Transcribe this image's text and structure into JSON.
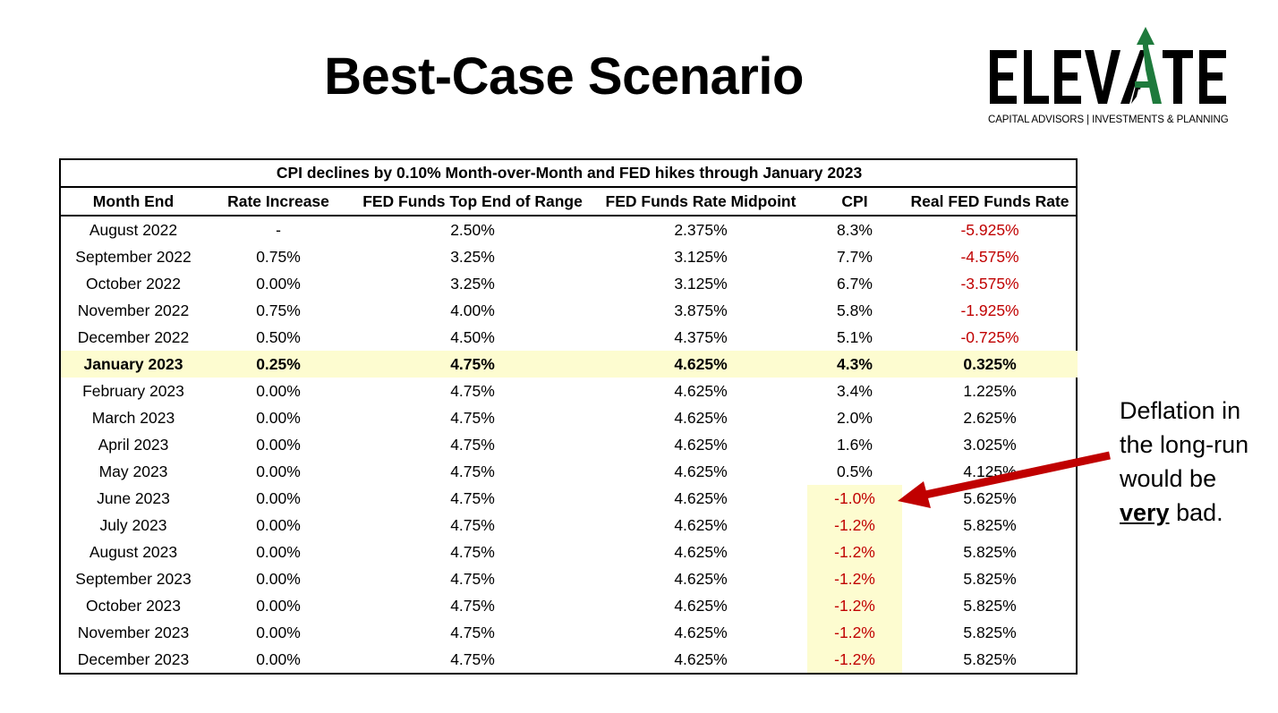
{
  "title": "Best-Case Scenario",
  "logo": {
    "wordmark": "ELEVATE",
    "tagline": "CAPITAL ADVISORS | INVESTMENTS & PLANNING",
    "colors": {
      "text": "#000000",
      "arrow": "#1e7a3c"
    }
  },
  "table": {
    "caption": "CPI declines by 0.10% Month-over-Month and FED hikes through January 2023",
    "columns": [
      "Month End",
      "Rate Increase",
      "FED Funds Top End of Range",
      "FED Funds Rate Midpoint",
      "CPI",
      "Real FED Funds Rate"
    ],
    "rows": [
      {
        "month": "August 2022",
        "rate_increase": "-",
        "top_end": "2.50%",
        "midpoint": "2.375%",
        "cpi": "8.3%",
        "real_rate": "-5.925%"
      },
      {
        "month": "September 2022",
        "rate_increase": "0.75%",
        "top_end": "3.25%",
        "midpoint": "3.125%",
        "cpi": "7.7%",
        "real_rate": "-4.575%"
      },
      {
        "month": "October 2022",
        "rate_increase": "0.00%",
        "top_end": "3.25%",
        "midpoint": "3.125%",
        "cpi": "6.7%",
        "real_rate": "-3.575%"
      },
      {
        "month": "November 2022",
        "rate_increase": "0.75%",
        "top_end": "4.00%",
        "midpoint": "3.875%",
        "cpi": "5.8%",
        "real_rate": "-1.925%"
      },
      {
        "month": "December 2022",
        "rate_increase": "0.50%",
        "top_end": "4.50%",
        "midpoint": "4.375%",
        "cpi": "5.1%",
        "real_rate": "-0.725%"
      },
      {
        "month": "January 2023",
        "rate_increase": "0.25%",
        "top_end": "4.75%",
        "midpoint": "4.625%",
        "cpi": "4.3%",
        "real_rate": "0.325%"
      },
      {
        "month": "February 2023",
        "rate_increase": "0.00%",
        "top_end": "4.75%",
        "midpoint": "4.625%",
        "cpi": "3.4%",
        "real_rate": "1.225%"
      },
      {
        "month": "March 2023",
        "rate_increase": "0.00%",
        "top_end": "4.75%",
        "midpoint": "4.625%",
        "cpi": "2.0%",
        "real_rate": "2.625%"
      },
      {
        "month": "April 2023",
        "rate_increase": "0.00%",
        "top_end": "4.75%",
        "midpoint": "4.625%",
        "cpi": "1.6%",
        "real_rate": "3.025%"
      },
      {
        "month": "May 2023",
        "rate_increase": "0.00%",
        "top_end": "4.75%",
        "midpoint": "4.625%",
        "cpi": "0.5%",
        "real_rate": "4.125%"
      },
      {
        "month": "June 2023",
        "rate_increase": "0.00%",
        "top_end": "4.75%",
        "midpoint": "4.625%",
        "cpi": "-1.0%",
        "real_rate": "5.625%"
      },
      {
        "month": "July 2023",
        "rate_increase": "0.00%",
        "top_end": "4.75%",
        "midpoint": "4.625%",
        "cpi": "-1.2%",
        "real_rate": "5.825%"
      },
      {
        "month": "August 2023",
        "rate_increase": "0.00%",
        "top_end": "4.75%",
        "midpoint": "4.625%",
        "cpi": "-1.2%",
        "real_rate": "5.825%"
      },
      {
        "month": "September 2023",
        "rate_increase": "0.00%",
        "top_end": "4.75%",
        "midpoint": "4.625%",
        "cpi": "-1.2%",
        "real_rate": "5.825%"
      },
      {
        "month": "October 2023",
        "rate_increase": "0.00%",
        "top_end": "4.75%",
        "midpoint": "4.625%",
        "cpi": "-1.2%",
        "real_rate": "5.825%"
      },
      {
        "month": "November 2023",
        "rate_increase": "0.00%",
        "top_end": "4.75%",
        "midpoint": "4.625%",
        "cpi": "-1.2%",
        "real_rate": "5.825%"
      },
      {
        "month": "December 2023",
        "rate_increase": "0.00%",
        "top_end": "4.75%",
        "midpoint": "4.625%",
        "cpi": "-1.2%",
        "real_rate": "5.825%"
      }
    ],
    "highlighted_month": "January 2023",
    "colors": {
      "negative": "#c00000",
      "highlight": "#fdfcd0"
    }
  },
  "annotation": {
    "line1": "Deflation in",
    "line2": "the long-run",
    "line3": "would be",
    "emphasis": "very",
    "line4_rest": " bad.",
    "arrow_color": "#c00000"
  }
}
